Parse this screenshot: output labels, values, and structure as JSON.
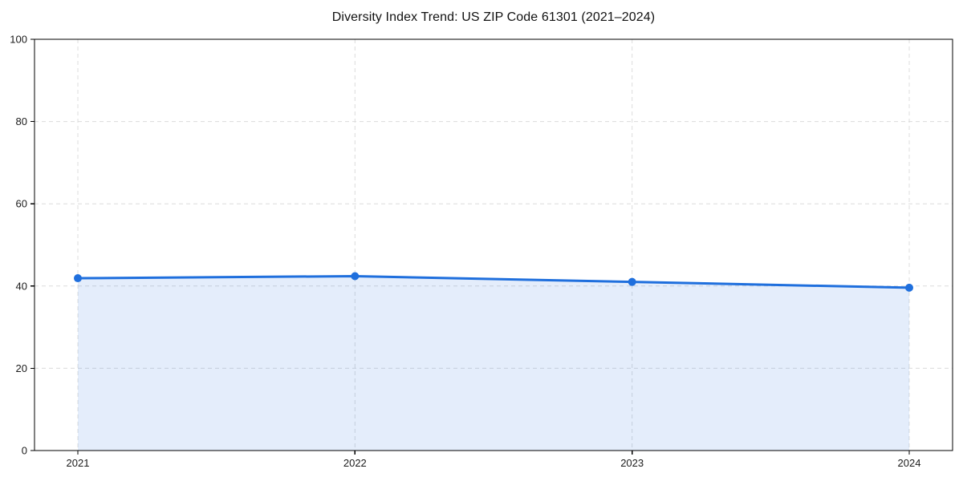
{
  "chart_data": {
    "type": "line",
    "title": "Diversity Index Trend: US ZIP Code 61301 (2021–2024)",
    "x": [
      "2021",
      "2022",
      "2023",
      "2024"
    ],
    "values": [
      41.9,
      42.4,
      41.0,
      39.6
    ],
    "series_name": "Diversity Index",
    "xlabel": "",
    "ylabel": "",
    "ylim": [
      0,
      100
    ],
    "yticks": [
      0,
      20,
      40,
      60,
      80,
      100
    ],
    "grid": "dashed-both",
    "legend": "none",
    "area_fill_to": 0,
    "colors": {
      "line": "#1f6fdd",
      "marker": "#1f6fdd",
      "fill": "#1f6fdd",
      "fill_opacity": 0.12,
      "grid": "#dcdcdc",
      "axis": "#000000",
      "text": "#1a1a1a"
    }
  }
}
